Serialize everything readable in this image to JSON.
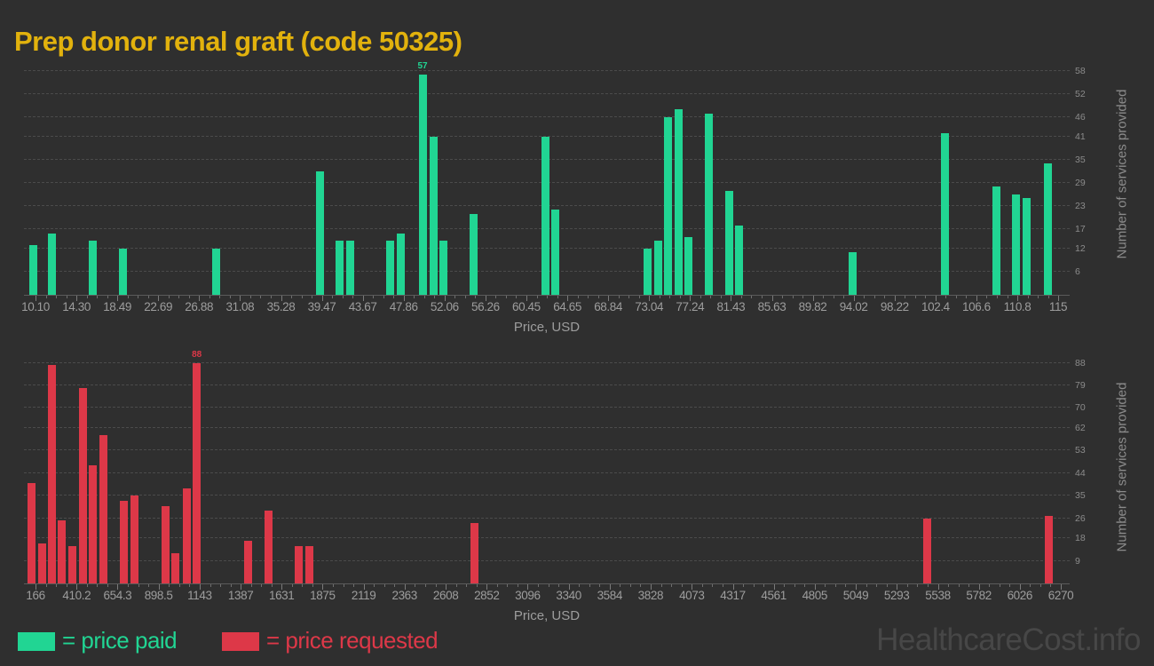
{
  "page": {
    "title": "Prep donor renal graft (code 50325)",
    "title_color": "#e2b20d",
    "background_color": "#2f2f2f",
    "watermark": "HealthcareCost.info"
  },
  "legend": {
    "paid_label": "= price paid",
    "requested_label": "= price requested",
    "paid_color": "#21d593",
    "requested_color": "#dd3848"
  },
  "chart_data": [
    {
      "type": "bar",
      "series_name": "price paid",
      "color": "#21d593",
      "xlabel": "Price, USD",
      "ylabel": "Number of services provided",
      "xlim": [
        8.92,
        116.18
      ],
      "ylim": [
        0,
        62.6
      ],
      "xtick_labels": [
        "10.10",
        "14.30",
        "18.49",
        "22.69",
        "26.88",
        "31.08",
        "35.28",
        "39.47",
        "43.67",
        "47.86",
        "52.06",
        "56.26",
        "60.45",
        "64.65",
        "68.84",
        "73.04",
        "77.24",
        "81.43",
        "85.63",
        "89.82",
        "94.02",
        "98.22",
        "102.4",
        "106.6",
        "110.8",
        "115"
      ],
      "xtick_values": [
        10.1,
        14.3,
        18.49,
        22.69,
        26.88,
        31.08,
        35.28,
        39.47,
        43.67,
        47.86,
        52.06,
        56.26,
        60.45,
        64.65,
        68.84,
        73.04,
        77.24,
        81.43,
        85.63,
        89.82,
        94.02,
        98.22,
        102.42,
        106.61,
        110.81,
        115
      ],
      "ytick_values": [
        58,
        52,
        46,
        41,
        35,
        29,
        23,
        17,
        12,
        6
      ],
      "max_label": "57",
      "bars": [
        {
          "x": 9.9,
          "y": 13
        },
        {
          "x": 11.8,
          "y": 16
        },
        {
          "x": 16.0,
          "y": 14
        },
        {
          "x": 19.1,
          "y": 12
        },
        {
          "x": 28.6,
          "y": 12
        },
        {
          "x": 39.3,
          "y": 32
        },
        {
          "x": 41.3,
          "y": 14
        },
        {
          "x": 42.4,
          "y": 14
        },
        {
          "x": 46.5,
          "y": 14
        },
        {
          "x": 47.6,
          "y": 16
        },
        {
          "x": 49.8,
          "y": 57
        },
        {
          "x": 50.9,
          "y": 41
        },
        {
          "x": 51.9,
          "y": 14
        },
        {
          "x": 55.0,
          "y": 21
        },
        {
          "x": 62.4,
          "y": 41
        },
        {
          "x": 63.4,
          "y": 22
        },
        {
          "x": 72.9,
          "y": 12
        },
        {
          "x": 74.0,
          "y": 14
        },
        {
          "x": 75.0,
          "y": 46
        },
        {
          "x": 76.1,
          "y": 48
        },
        {
          "x": 77.1,
          "y": 15
        },
        {
          "x": 79.2,
          "y": 47
        },
        {
          "x": 81.3,
          "y": 27
        },
        {
          "x": 82.3,
          "y": 18
        },
        {
          "x": 93.9,
          "y": 11
        },
        {
          "x": 103.4,
          "y": 42
        },
        {
          "x": 108.7,
          "y": 28
        },
        {
          "x": 110.7,
          "y": 26
        },
        {
          "x": 111.8,
          "y": 25
        },
        {
          "x": 113.9,
          "y": 34
        }
      ]
    },
    {
      "type": "bar",
      "series_name": "price requested",
      "color": "#dd3848",
      "xlabel": "Price, USD",
      "ylabel": "Number of services provided",
      "xlim": [
        97,
        6323
      ],
      "ylim": [
        0,
        92.8
      ],
      "xtick_labels": [
        "166",
        "410.2",
        "654.3",
        "898.5",
        "1143",
        "1387",
        "1631",
        "1875",
        "2119",
        "2363",
        "2608",
        "2852",
        "3096",
        "3340",
        "3584",
        "3828",
        "4073",
        "4317",
        "4561",
        "4805",
        "5049",
        "5293",
        "5538",
        "5782",
        "6026",
        "6270"
      ],
      "xtick_values": [
        166,
        410.2,
        654.3,
        898.5,
        1143,
        1387,
        1631,
        1875,
        2119,
        2363,
        2608,
        2852,
        3096,
        3340,
        3584,
        3828,
        4073,
        4317,
        4561,
        4805,
        5049,
        5293,
        5538,
        5782,
        6026,
        6270
      ],
      "ytick_values": [
        88,
        79,
        70,
        62,
        53,
        44,
        35,
        26,
        18,
        9
      ],
      "max_label": "88",
      "bars": [
        {
          "x": 142,
          "y": 40
        },
        {
          "x": 203,
          "y": 16
        },
        {
          "x": 261,
          "y": 87
        },
        {
          "x": 324,
          "y": 25
        },
        {
          "x": 384,
          "y": 15
        },
        {
          "x": 446,
          "y": 78
        },
        {
          "x": 506,
          "y": 47
        },
        {
          "x": 568,
          "y": 59
        },
        {
          "x": 691,
          "y": 33
        },
        {
          "x": 753,
          "y": 35
        },
        {
          "x": 941,
          "y": 31
        },
        {
          "x": 996,
          "y": 12
        },
        {
          "x": 1064,
          "y": 38
        },
        {
          "x": 1126,
          "y": 88
        },
        {
          "x": 1431,
          "y": 17
        },
        {
          "x": 1553,
          "y": 29
        },
        {
          "x": 1734,
          "y": 15
        },
        {
          "x": 1797,
          "y": 15
        },
        {
          "x": 2777,
          "y": 24
        },
        {
          "x": 5472,
          "y": 26
        },
        {
          "x": 6201,
          "y": 27
        }
      ]
    }
  ]
}
